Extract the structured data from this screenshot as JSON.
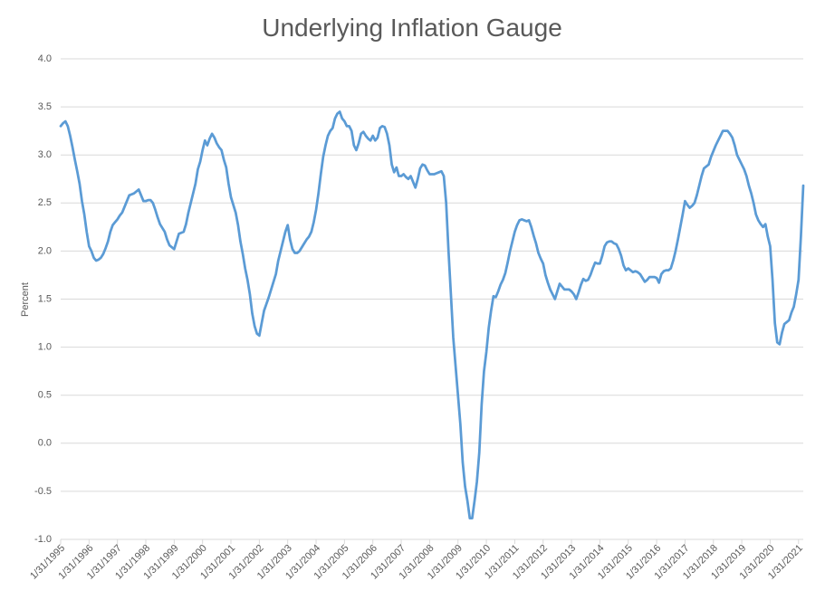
{
  "chart_data": {
    "type": "line",
    "title": "Underlying Inflation Gauge",
    "y_label": "Percent",
    "categories": [
      "1/31/1995",
      null,
      null,
      null,
      null,
      null,
      null,
      null,
      null,
      null,
      null,
      null,
      "1/31/1996",
      null,
      null,
      null,
      null,
      null,
      null,
      null,
      null,
      null,
      null,
      null,
      "1/31/1997",
      null,
      null,
      null,
      null,
      null,
      null,
      null,
      null,
      null,
      null,
      null,
      "1/31/1998",
      null,
      null,
      null,
      null,
      null,
      null,
      null,
      null,
      null,
      null,
      null,
      "1/31/1999",
      null,
      null,
      null,
      null,
      null,
      null,
      null,
      null,
      null,
      null,
      null,
      "1/31/2000",
      null,
      null,
      null,
      null,
      null,
      null,
      null,
      null,
      null,
      null,
      null,
      "1/31/2001",
      null,
      null,
      null,
      null,
      null,
      null,
      null,
      null,
      null,
      null,
      null,
      "1/31/2002",
      null,
      null,
      null,
      null,
      null,
      null,
      null,
      null,
      null,
      null,
      null,
      "1/31/2003",
      null,
      null,
      null,
      null,
      null,
      null,
      null,
      null,
      null,
      null,
      null,
      "1/31/2004",
      null,
      null,
      null,
      null,
      null,
      null,
      null,
      null,
      null,
      null,
      null,
      "1/31/2005",
      null,
      null,
      null,
      null,
      null,
      null,
      null,
      null,
      null,
      null,
      null,
      "1/31/2006",
      null,
      null,
      null,
      null,
      null,
      null,
      null,
      null,
      null,
      null,
      null,
      "1/31/2007",
      null,
      null,
      null,
      null,
      null,
      null,
      null,
      null,
      null,
      null,
      null,
      "1/31/2008",
      null,
      null,
      null,
      null,
      null,
      null,
      null,
      null,
      null,
      null,
      null,
      "1/31/2009",
      null,
      null,
      null,
      null,
      null,
      null,
      null,
      null,
      null,
      null,
      null,
      "1/31/2010",
      null,
      null,
      null,
      null,
      null,
      null,
      null,
      null,
      null,
      null,
      null,
      "1/31/2011",
      null,
      null,
      null,
      null,
      null,
      null,
      null,
      null,
      null,
      null,
      null,
      "1/31/2012",
      null,
      null,
      null,
      null,
      null,
      null,
      null,
      null,
      null,
      null,
      null,
      "1/31/2013",
      null,
      null,
      null,
      null,
      null,
      null,
      null,
      null,
      null,
      null,
      null,
      "1/31/2014",
      null,
      null,
      null,
      null,
      null,
      null,
      null,
      null,
      null,
      null,
      null,
      "1/31/2015",
      null,
      null,
      null,
      null,
      null,
      null,
      null,
      null,
      null,
      null,
      null,
      "1/31/2016",
      null,
      null,
      null,
      null,
      null,
      null,
      null,
      null,
      null,
      null,
      null,
      "1/31/2017",
      null,
      null,
      null,
      null,
      null,
      null,
      null,
      null,
      null,
      null,
      null,
      "1/31/2018",
      null,
      null,
      null,
      null,
      null,
      null,
      null,
      null,
      null,
      null,
      null,
      "1/31/2019",
      null,
      null,
      null,
      null,
      null,
      null,
      null,
      null,
      null,
      null,
      null,
      "1/31/2020",
      null,
      null,
      null,
      null,
      null,
      null,
      null,
      null,
      null,
      null,
      null,
      "1/31/2021",
      null,
      null
    ],
    "values": [
      3.3,
      3.33,
      3.35,
      3.3,
      3.2,
      3.08,
      2.95,
      2.83,
      2.7,
      2.52,
      2.38,
      2.2,
      2.05,
      2.0,
      1.93,
      1.9,
      1.91,
      1.93,
      1.97,
      2.03,
      2.1,
      2.2,
      2.27,
      2.3,
      2.33,
      2.37,
      2.4,
      2.46,
      2.52,
      2.58,
      2.59,
      2.6,
      2.62,
      2.64,
      2.58,
      2.52,
      2.52,
      2.53,
      2.53,
      2.5,
      2.43,
      2.35,
      2.28,
      2.24,
      2.2,
      2.12,
      2.06,
      2.04,
      2.02,
      2.1,
      2.18,
      2.19,
      2.2,
      2.28,
      2.4,
      2.5,
      2.6,
      2.7,
      2.85,
      2.93,
      3.05,
      3.15,
      3.1,
      3.17,
      3.22,
      3.18,
      3.12,
      3.08,
      3.05,
      2.95,
      2.87,
      2.7,
      2.56,
      2.48,
      2.4,
      2.27,
      2.1,
      1.97,
      1.82,
      1.7,
      1.55,
      1.35,
      1.22,
      1.14,
      1.12,
      1.25,
      1.38,
      1.45,
      1.52,
      1.6,
      1.68,
      1.76,
      1.9,
      2.0,
      2.1,
      2.2,
      2.27,
      2.12,
      2.02,
      1.98,
      1.98,
      2.0,
      2.04,
      2.08,
      2.12,
      2.15,
      2.2,
      2.3,
      2.43,
      2.6,
      2.8,
      2.98,
      3.1,
      3.2,
      3.25,
      3.28,
      3.38,
      3.43,
      3.45,
      3.38,
      3.35,
      3.3,
      3.3,
      3.25,
      3.1,
      3.05,
      3.12,
      3.22,
      3.24,
      3.2,
      3.17,
      3.15,
      3.2,
      3.15,
      3.18,
      3.28,
      3.3,
      3.29,
      3.22,
      3.1,
      2.9,
      2.82,
      2.87,
      2.78,
      2.78,
      2.8,
      2.77,
      2.75,
      2.78,
      2.72,
      2.66,
      2.75,
      2.86,
      2.9,
      2.89,
      2.84,
      2.8,
      2.8,
      2.8,
      2.81,
      2.82,
      2.83,
      2.78,
      2.5,
      2.0,
      1.55,
      1.1,
      0.8,
      0.5,
      0.2,
      -0.2,
      -0.45,
      -0.6,
      -0.78,
      -0.78,
      -0.6,
      -0.4,
      -0.1,
      0.4,
      0.75,
      0.95,
      1.2,
      1.38,
      1.53,
      1.52,
      1.58,
      1.65,
      1.7,
      1.77,
      1.88,
      2.0,
      2.1,
      2.2,
      2.27,
      2.32,
      2.33,
      2.32,
      2.31,
      2.32,
      2.25,
      2.16,
      2.08,
      1.98,
      1.92,
      1.87,
      1.75,
      1.67,
      1.6,
      1.55,
      1.5,
      1.58,
      1.66,
      1.63,
      1.6,
      1.6,
      1.6,
      1.58,
      1.55,
      1.5,
      1.57,
      1.65,
      1.71,
      1.69,
      1.7,
      1.75,
      1.82,
      1.88,
      1.87,
      1.87,
      1.95,
      2.05,
      2.09,
      2.1,
      2.1,
      2.08,
      2.07,
      2.02,
      1.95,
      1.85,
      1.8,
      1.82,
      1.8,
      1.78,
      1.79,
      1.78,
      1.76,
      1.72,
      1.68,
      1.7,
      1.73,
      1.73,
      1.73,
      1.72,
      1.67,
      1.76,
      1.79,
      1.8,
      1.8,
      1.82,
      1.9,
      2.0,
      2.12,
      2.25,
      2.38,
      2.52,
      2.48,
      2.45,
      2.47,
      2.5,
      2.58,
      2.68,
      2.78,
      2.86,
      2.88,
      2.9,
      2.98,
      3.04,
      3.1,
      3.15,
      3.2,
      3.25,
      3.25,
      3.25,
      3.22,
      3.18,
      3.1,
      3.0,
      2.95,
      2.9,
      2.85,
      2.78,
      2.68,
      2.6,
      2.5,
      2.38,
      2.32,
      2.28,
      2.25,
      2.28,
      2.15,
      2.05,
      1.7,
      1.25,
      1.05,
      1.03,
      1.15,
      1.24,
      1.26,
      1.28,
      1.36,
      1.42,
      1.55,
      1.7,
      2.15,
      2.68
    ],
    "color": "#5b9bd5",
    "ylim": [
      -1,
      4
    ],
    "yticks": [
      {
        "value": -1,
        "label": "-1.0"
      },
      -0.5,
      {
        "value": 0,
        "label": "0.0"
      },
      0.5,
      {
        "value": 1,
        "label": "1.0"
      },
      1.5,
      {
        "value": 2,
        "label": "2.0"
      },
      2.5,
      {
        "value": 3,
        "label": "3.0"
      },
      3.5,
      {
        "value": 4,
        "label": "4.0"
      }
    ],
    "grid": true
  }
}
